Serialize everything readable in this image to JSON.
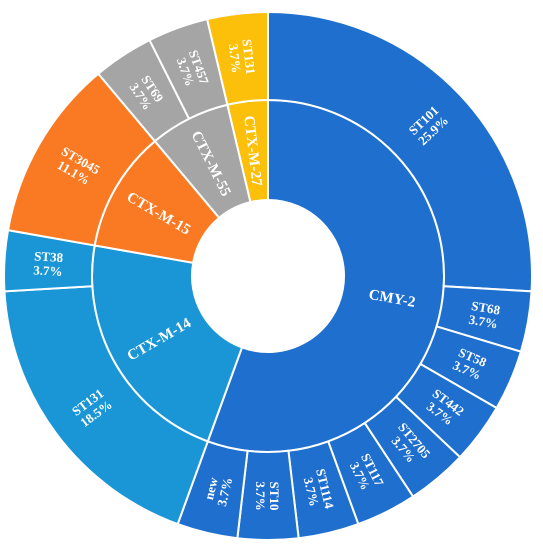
{
  "chart_data": {
    "type": "sunburst",
    "unit": "%",
    "inner": [
      {
        "label": "CMY-2",
        "value": 55.5,
        "color": "#1f6fcf"
      },
      {
        "label": "CTX-M-14",
        "value": 22.2,
        "color": "#1a96d6"
      },
      {
        "label": "CTX-M-15",
        "value": 11.1,
        "color": "#fa7a24"
      },
      {
        "label": "CTX-M-55",
        "value": 7.4,
        "color": "#a5a5a5"
      },
      {
        "label": "CTX-M-27",
        "value": 3.7,
        "color": "#fcc00a"
      }
    ],
    "outer": [
      {
        "label": "ST101",
        "value": 25.9,
        "text": "25.9%",
        "parent": "CMY-2"
      },
      {
        "label": "ST68",
        "value": 3.7,
        "text": "3.7%",
        "parent": "CMY-2"
      },
      {
        "label": "ST58",
        "value": 3.7,
        "text": "3.7%",
        "parent": "CMY-2"
      },
      {
        "label": "ST442",
        "value": 3.7,
        "text": "3.7%",
        "parent": "CMY-2"
      },
      {
        "label": "ST2705",
        "value": 3.7,
        "text": "3.7%",
        "parent": "CMY-2"
      },
      {
        "label": "ST117",
        "value": 3.7,
        "text": "3.7%",
        "parent": "CMY-2"
      },
      {
        "label": "ST1114",
        "value": 3.7,
        "text": "3.7%",
        "parent": "CMY-2"
      },
      {
        "label": "ST10",
        "value": 3.7,
        "text": "3.7%",
        "parent": "CMY-2"
      },
      {
        "label": "new",
        "value": 3.7,
        "text": "3.7%",
        "parent": "CMY-2"
      },
      {
        "label": "ST131",
        "value": 18.5,
        "text": "18.5%",
        "parent": "CTX-M-14"
      },
      {
        "label": "ST38",
        "value": 3.7,
        "text": "3.7%",
        "parent": "CTX-M-14"
      },
      {
        "label": "ST3045",
        "value": 11.1,
        "text": "11.1%",
        "parent": "CTX-M-15"
      },
      {
        "label": "ST69",
        "value": 3.7,
        "text": "3.7%",
        "parent": "CTX-M-55"
      },
      {
        "label": "ST457",
        "value": 3.7,
        "text": "3.7%",
        "parent": "CTX-M-55"
      },
      {
        "label": "ST131",
        "value": 3.7,
        "text": "3.7%",
        "parent": "CTX-M-27"
      }
    ]
  }
}
